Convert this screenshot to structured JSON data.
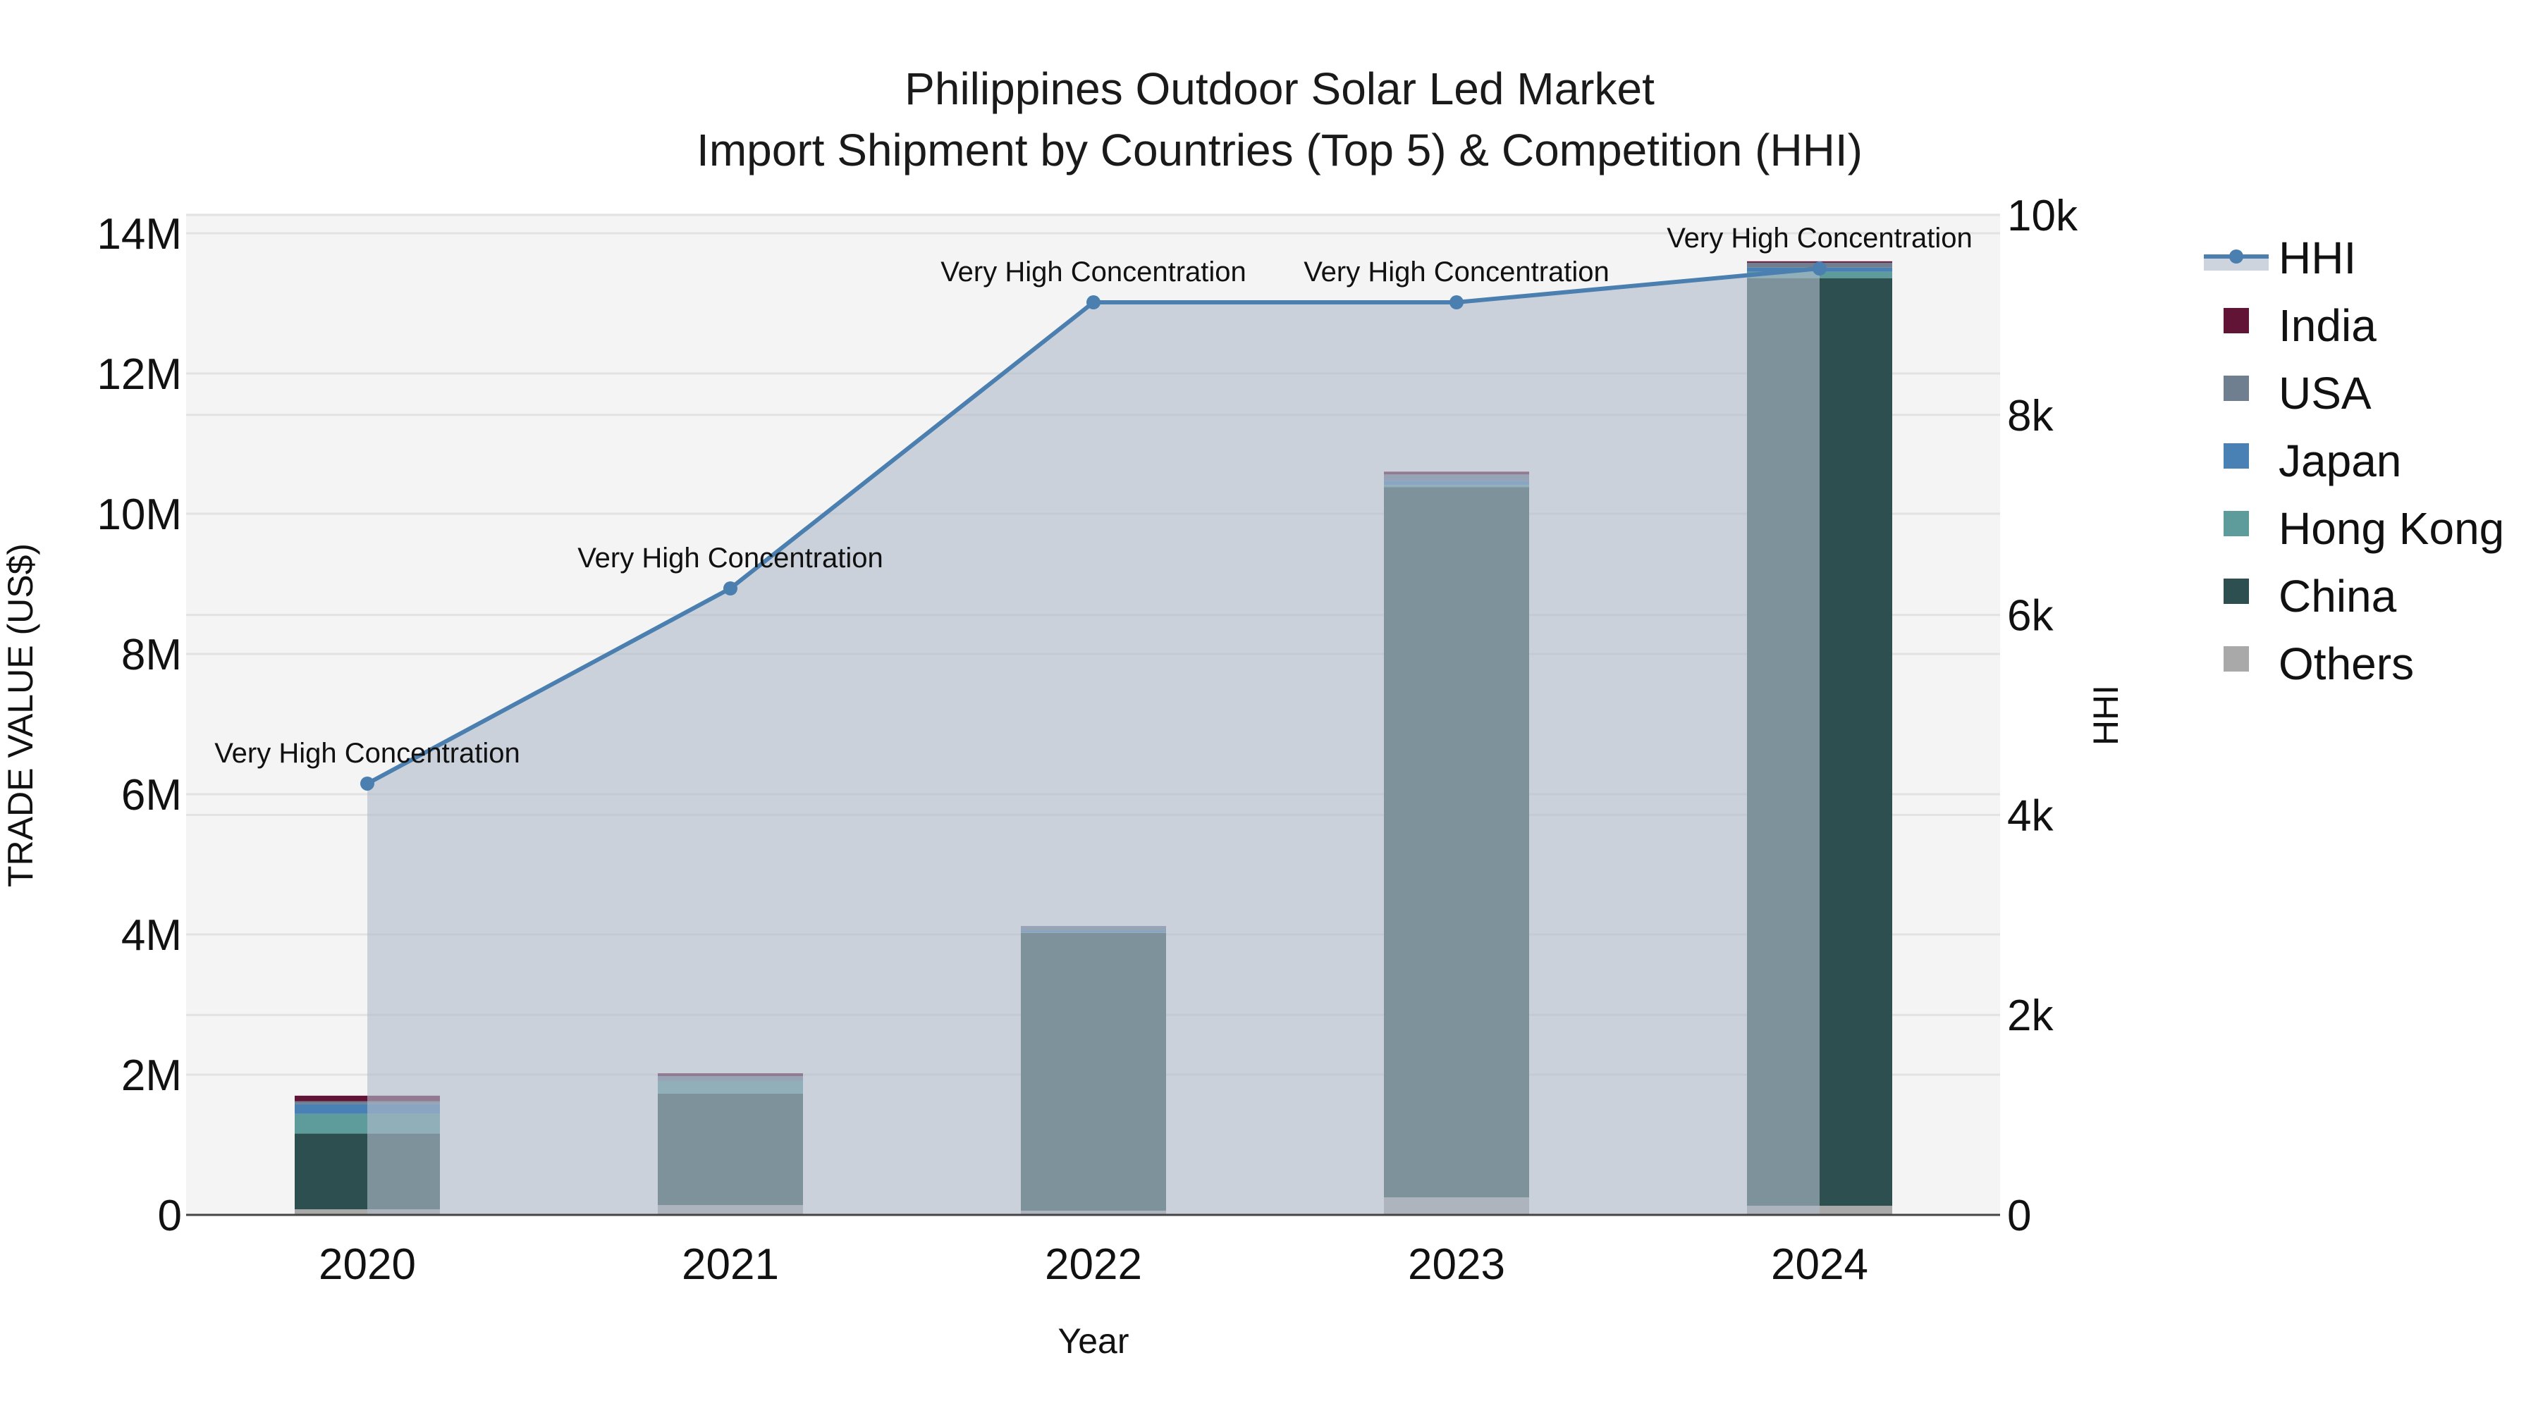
{
  "title": {
    "line1": "Philippines Outdoor Solar Led Market",
    "line2": "Import Shipment by Countries (Top 5) & Competition (HHI)"
  },
  "axes": {
    "x_title": "Year",
    "y_left_title": "TRADE VALUE (US$)",
    "y_right_title": "HHI",
    "y_left_ticks": [
      "0",
      "2M",
      "4M",
      "6M",
      "8M",
      "10M",
      "12M",
      "14M"
    ],
    "y_right_ticks": [
      "0",
      "2k",
      "4k",
      "6k",
      "8k",
      "10k"
    ]
  },
  "legend": {
    "items": [
      {
        "label": "HHI",
        "color": "#4a7fb0",
        "type": "line"
      },
      {
        "label": "India",
        "color": "#611435",
        "type": "bar"
      },
      {
        "label": "USA",
        "color": "#6f7f90",
        "type": "bar"
      },
      {
        "label": "Japan",
        "color": "#4a81b4",
        "type": "bar"
      },
      {
        "label": "Hong Kong",
        "color": "#5e9c9c",
        "type": "bar"
      },
      {
        "label": "China",
        "color": "#2e4f4f",
        "type": "bar"
      },
      {
        "label": "Others",
        "color": "#a9a9a9",
        "type": "bar"
      }
    ]
  },
  "colors": {
    "plot_bg": "#f4f4f4",
    "grid": "#e2e2e2",
    "hhi_line": "#4a7fb0",
    "hhi_fill": "rgba(176,188,204,0.62)"
  },
  "chart_data": {
    "type": "bar",
    "stacked": true,
    "title": "Philippines Outdoor Solar Led Market — Import Shipment by Countries (Top 5) & Competition (HHI)",
    "xlabel": "Year",
    "ylabel": "TRADE VALUE (US$)",
    "y2label": "HHI",
    "categories": [
      "2020",
      "2021",
      "2022",
      "2023",
      "2024"
    ],
    "ylim": [
      0,
      14200000
    ],
    "y2lim": [
      0,
      10000
    ],
    "grid": true,
    "legend_position": "right",
    "series": [
      {
        "name": "Others",
        "color": "#a9a9a9",
        "values": [
          80000,
          140000,
          60000,
          250000,
          130000
        ]
      },
      {
        "name": "China",
        "color": "#2e4f4f",
        "values": [
          1080000,
          1590000,
          3960000,
          10130000,
          13230000
        ]
      },
      {
        "name": "Hong Kong",
        "color": "#5e9c9c",
        "values": [
          280000,
          180000,
          10000,
          30000,
          90000
        ]
      },
      {
        "name": "Japan",
        "color": "#4a81b4",
        "values": [
          140000,
          0,
          30000,
          60000,
          60000
        ]
      },
      {
        "name": "USA",
        "color": "#6f7f90",
        "values": [
          40000,
          70000,
          60000,
          90000,
          70000
        ]
      },
      {
        "name": "India",
        "color": "#611435",
        "values": [
          80000,
          40000,
          0,
          40000,
          20000
        ]
      }
    ],
    "line_series": {
      "name": "HHI",
      "axis": "y2",
      "color": "#4a7fb0",
      "fill": "tozeroy",
      "values": [
        4313,
        6265,
        9126,
        9126,
        9464
      ],
      "annotations": [
        "Very High Concentration",
        "Very High Concentration",
        "Very High Concentration",
        "Very High Concentration",
        "Very High Concentration"
      ]
    }
  }
}
